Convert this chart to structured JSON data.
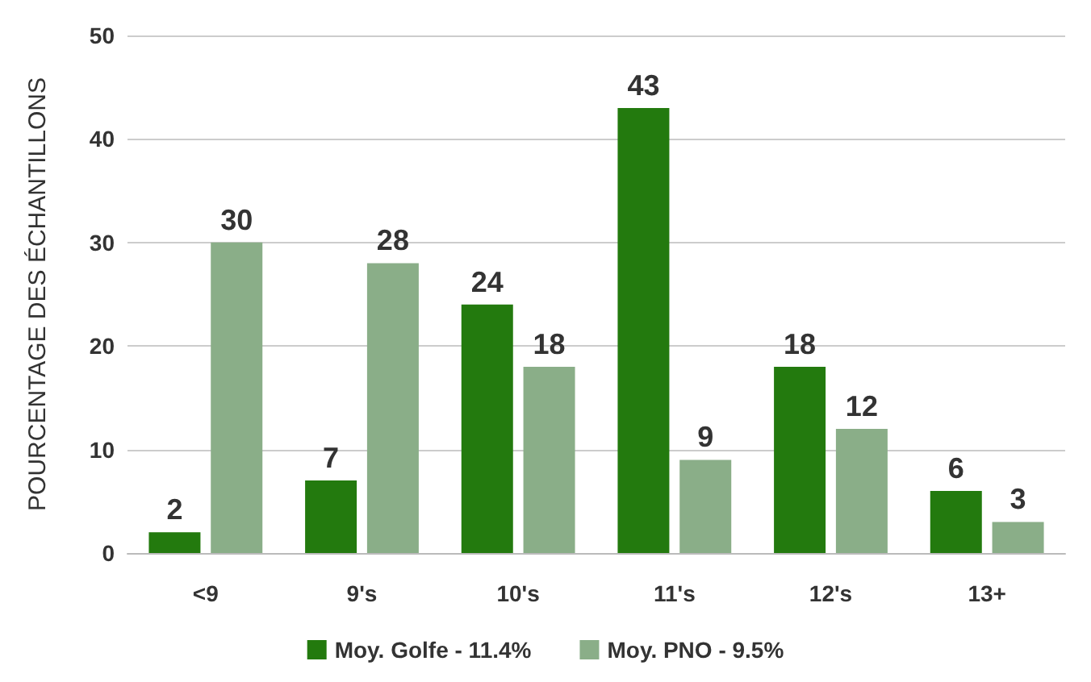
{
  "chart_data": {
    "type": "bar",
    "ylabel": "POURCENTAGE DES ÉCHANTILLONS",
    "categories": [
      "<9",
      "9's",
      "10's",
      "11's",
      "12's",
      "13+"
    ],
    "series": [
      {
        "name": "Moy. Golfe - 11.4%",
        "color": "#237a0e",
        "values": [
          2,
          7,
          24,
          43,
          18,
          6
        ]
      },
      {
        "name": "Moy. PNO - 9.5%",
        "color": "#8aae88",
        "values": [
          30,
          28,
          18,
          9,
          12,
          3
        ]
      }
    ],
    "ylim": [
      0,
      50
    ],
    "yticks": [
      0,
      10,
      20,
      30,
      40,
      50
    ],
    "grid": "y",
    "legend": "bottom",
    "data_labels": true
  }
}
